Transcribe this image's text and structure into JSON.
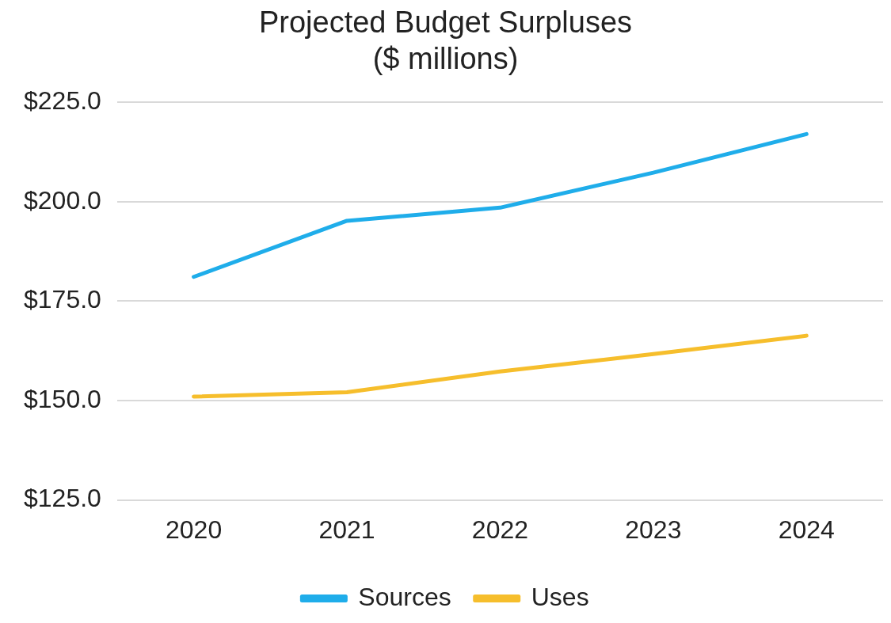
{
  "chart_data": {
    "type": "line",
    "title": [
      "Projected Budget Surpluses",
      "($ millions)"
    ],
    "categories": [
      "2020",
      "2021",
      "2022",
      "2023",
      "2024"
    ],
    "series": [
      {
        "name": "Sources",
        "color": "#1fadea",
        "values": [
          181.1,
          195.2,
          198.5,
          207.3,
          217.0
        ]
      },
      {
        "name": "Uses",
        "color": "#f6be2c",
        "values": [
          151.0,
          152.1,
          157.3,
          161.7,
          166.3
        ]
      }
    ],
    "ylim": [
      125,
      225
    ],
    "yticks": [
      {
        "value": 125,
        "label": "$125.0"
      },
      {
        "value": 150,
        "label": "$150.0"
      },
      {
        "value": 175,
        "label": "$175.0"
      },
      {
        "value": 200,
        "label": "$200.0"
      },
      {
        "value": 225,
        "label": "$225.0"
      }
    ],
    "grid": "y",
    "legend": "bottom",
    "marker": "none",
    "line_style": "solid"
  }
}
